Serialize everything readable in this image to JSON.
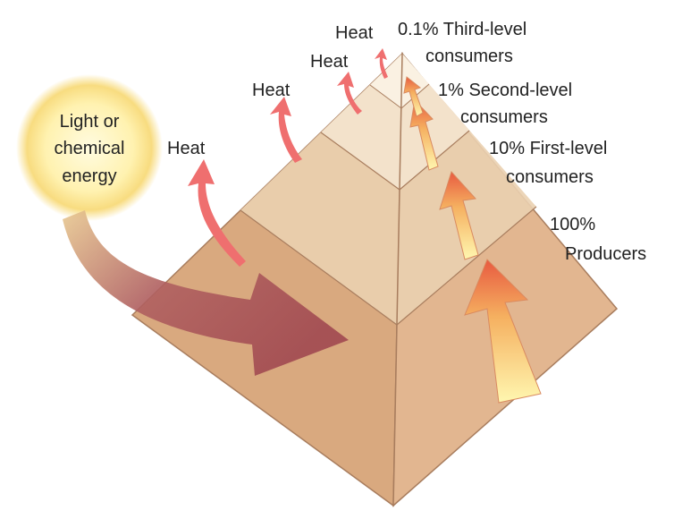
{
  "source": {
    "lines": [
      "Light or",
      "chemical",
      "energy"
    ]
  },
  "heat_labels": [
    "Heat",
    "Heat",
    "Heat",
    "Heat"
  ],
  "levels": [
    {
      "lines": [
        "0.1% Third-level",
        "consumers"
      ]
    },
    {
      "lines": [
        "1% Second-level",
        "consumers"
      ]
    },
    {
      "lines": [
        "10% First-level",
        "consumers"
      ]
    },
    {
      "lines": [
        "100%",
        "Producers"
      ]
    }
  ]
}
